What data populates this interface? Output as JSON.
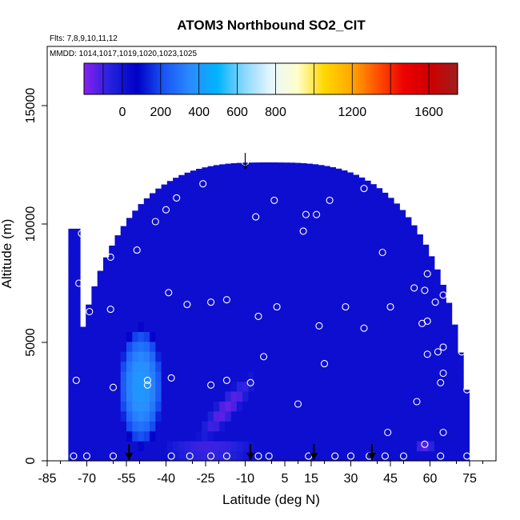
{
  "chart_data": {
    "type": "heatmap",
    "title": "ATOM3 Northbound SO2_CIT",
    "subtitle_flights": "Flts: 7,8,9,10,11,12",
    "subtitle_dates": "MMDD: 1014,1017,1019,1020,1023,1025",
    "xlabel": "Latitude (deg N)",
    "ylabel": "Altitude (m)",
    "xlim": [
      -85,
      85
    ],
    "ylim": [
      0,
      17500
    ],
    "x_ticks": [
      -85,
      -70,
      -55,
      -40,
      -25,
      -10,
      5,
      15,
      30,
      45,
      60,
      75
    ],
    "x_tick_labels": [
      "-85",
      "-70",
      "-55",
      "-40",
      "-25",
      "-10",
      "5",
      "15",
      "30",
      "45",
      "60",
      "75"
    ],
    "y_ticks": [
      0,
      5000,
      10000,
      15000
    ],
    "y_tick_labels": [
      "0",
      "5000",
      "10000",
      "15000"
    ],
    "colorbar": {
      "min": -200,
      "max": 1750,
      "ticks": [
        0,
        200,
        400,
        600,
        800,
        1200,
        1600
      ],
      "tick_labels": [
        "0",
        "200",
        "400",
        "600",
        "800",
        "1200",
        "1600"
      ],
      "colors": [
        "#8a1ff0",
        "#2222dd",
        "#0000c8",
        "#1a55f5",
        "#2a8cff",
        "#00b4ff",
        "#88d8ff",
        "#e6f6ff",
        "#ffffcc",
        "#ffd700",
        "#ffaa00",
        "#ff5000",
        "#ee0000",
        "#cc0000",
        "#a01e1e"
      ]
    },
    "field": {
      "background_value": 20,
      "elevated_regions": [
        {
          "name": "southern-plume",
          "lat_range": [
            -58,
            -41
          ],
          "alt_range": [
            600,
            5700
          ],
          "peak_value": 400
        },
        {
          "name": "diagonal-plume",
          "lat_range": [
            -30,
            0
          ],
          "alt_range": [
            800,
            3700
          ],
          "peak_value": -150
        },
        {
          "name": "low-level-band",
          "lat_range": [
            -42,
            -5
          ],
          "alt_range": [
            0,
            900
          ],
          "peak_value": -120
        },
        {
          "name": "northern-patch",
          "lat_range": [
            54,
            62
          ],
          "alt_range": [
            300,
            900
          ],
          "peak_value": -130
        }
      ]
    },
    "sample_points": [
      {
        "lat": -75,
        "alt": 200
      },
      {
        "lat": -74,
        "alt": 3400
      },
      {
        "lat": -73,
        "alt": 7500
      },
      {
        "lat": -72,
        "alt": 9600
      },
      {
        "lat": -69,
        "alt": 6300
      },
      {
        "lat": -70,
        "alt": 200
      },
      {
        "lat": -61,
        "alt": 8600
      },
      {
        "lat": -61,
        "alt": 6400
      },
      {
        "lat": -60,
        "alt": 3100
      },
      {
        "lat": -60,
        "alt": 200
      },
      {
        "lat": -51,
        "alt": 8900
      },
      {
        "lat": -44,
        "alt": 10100
      },
      {
        "lat": -47,
        "alt": 3200
      },
      {
        "lat": -47,
        "alt": 3400
      },
      {
        "lat": -40,
        "alt": 10600
      },
      {
        "lat": -39,
        "alt": 7100
      },
      {
        "lat": -38,
        "alt": 3500
      },
      {
        "lat": -38,
        "alt": 200
      },
      {
        "lat": -36,
        "alt": 11100
      },
      {
        "lat": -32,
        "alt": 6600
      },
      {
        "lat": -31,
        "alt": 200
      },
      {
        "lat": -26,
        "alt": 11700
      },
      {
        "lat": -23,
        "alt": 6700
      },
      {
        "lat": -23,
        "alt": 3200
      },
      {
        "lat": -23,
        "alt": 200
      },
      {
        "lat": -17,
        "alt": 6800
      },
      {
        "lat": -17,
        "alt": 3400
      },
      {
        "lat": -17,
        "alt": 200
      },
      {
        "lat": -10,
        "alt": 12600
      },
      {
        "lat": -8,
        "alt": 3300
      },
      {
        "lat": -5,
        "alt": 200
      },
      {
        "lat": -6,
        "alt": 10300
      },
      {
        "lat": -5,
        "alt": 6100
      },
      {
        "lat": -3,
        "alt": 4400
      },
      {
        "lat": -1,
        "alt": 200
      },
      {
        "lat": 1,
        "alt": 11000
      },
      {
        "lat": 2,
        "alt": 6500
      },
      {
        "lat": 10,
        "alt": 2400
      },
      {
        "lat": 12,
        "alt": 9700
      },
      {
        "lat": 13,
        "alt": 10400
      },
      {
        "lat": 14,
        "alt": 200
      },
      {
        "lat": 17,
        "alt": 10400
      },
      {
        "lat": 18,
        "alt": 5700
      },
      {
        "lat": 20,
        "alt": 4100
      },
      {
        "lat": 22,
        "alt": 11000
      },
      {
        "lat": 24,
        "alt": 200
      },
      {
        "lat": 28,
        "alt": 6500
      },
      {
        "lat": 30,
        "alt": 200
      },
      {
        "lat": 35,
        "alt": 11500
      },
      {
        "lat": 35,
        "alt": 5600
      },
      {
        "lat": 37,
        "alt": 200
      },
      {
        "lat": 42,
        "alt": 8800
      },
      {
        "lat": 43,
        "alt": 200
      },
      {
        "lat": 44,
        "alt": 1200
      },
      {
        "lat": 45,
        "alt": 6500
      },
      {
        "lat": 50,
        "alt": 200
      },
      {
        "lat": 54,
        "alt": 7300
      },
      {
        "lat": 55,
        "alt": 2500
      },
      {
        "lat": 57,
        "alt": 5800
      },
      {
        "lat": 58,
        "alt": 7200
      },
      {
        "lat": 59,
        "alt": 7900
      },
      {
        "lat": 59,
        "alt": 5900
      },
      {
        "lat": 59,
        "alt": 4500
      },
      {
        "lat": 58,
        "alt": 700
      },
      {
        "lat": 62,
        "alt": 6700
      },
      {
        "lat": 63,
        "alt": 4600
      },
      {
        "lat": 64,
        "alt": 3300
      },
      {
        "lat": 64,
        "alt": 200
      },
      {
        "lat": 65,
        "alt": 3700
      },
      {
        "lat": 65,
        "alt": 4800
      },
      {
        "lat": 65,
        "alt": 1200
      },
      {
        "lat": 65,
        "alt": 7000
      },
      {
        "lat": 66,
        "alt": 8400
      },
      {
        "lat": 72,
        "alt": 6700
      },
      {
        "lat": 72,
        "alt": 4600
      },
      {
        "lat": 74,
        "alt": 3000
      },
      {
        "lat": 74,
        "alt": 200
      }
    ],
    "arrow_markers": [
      {
        "lat": -54,
        "alt_top": 700
      },
      {
        "lat": -8,
        "alt_top": 700
      },
      {
        "lat": 16,
        "alt_top": 700
      },
      {
        "lat": 38,
        "alt_top": 700
      },
      {
        "lat": -10,
        "alt_top": 13000,
        "direction": "down-short"
      }
    ]
  }
}
